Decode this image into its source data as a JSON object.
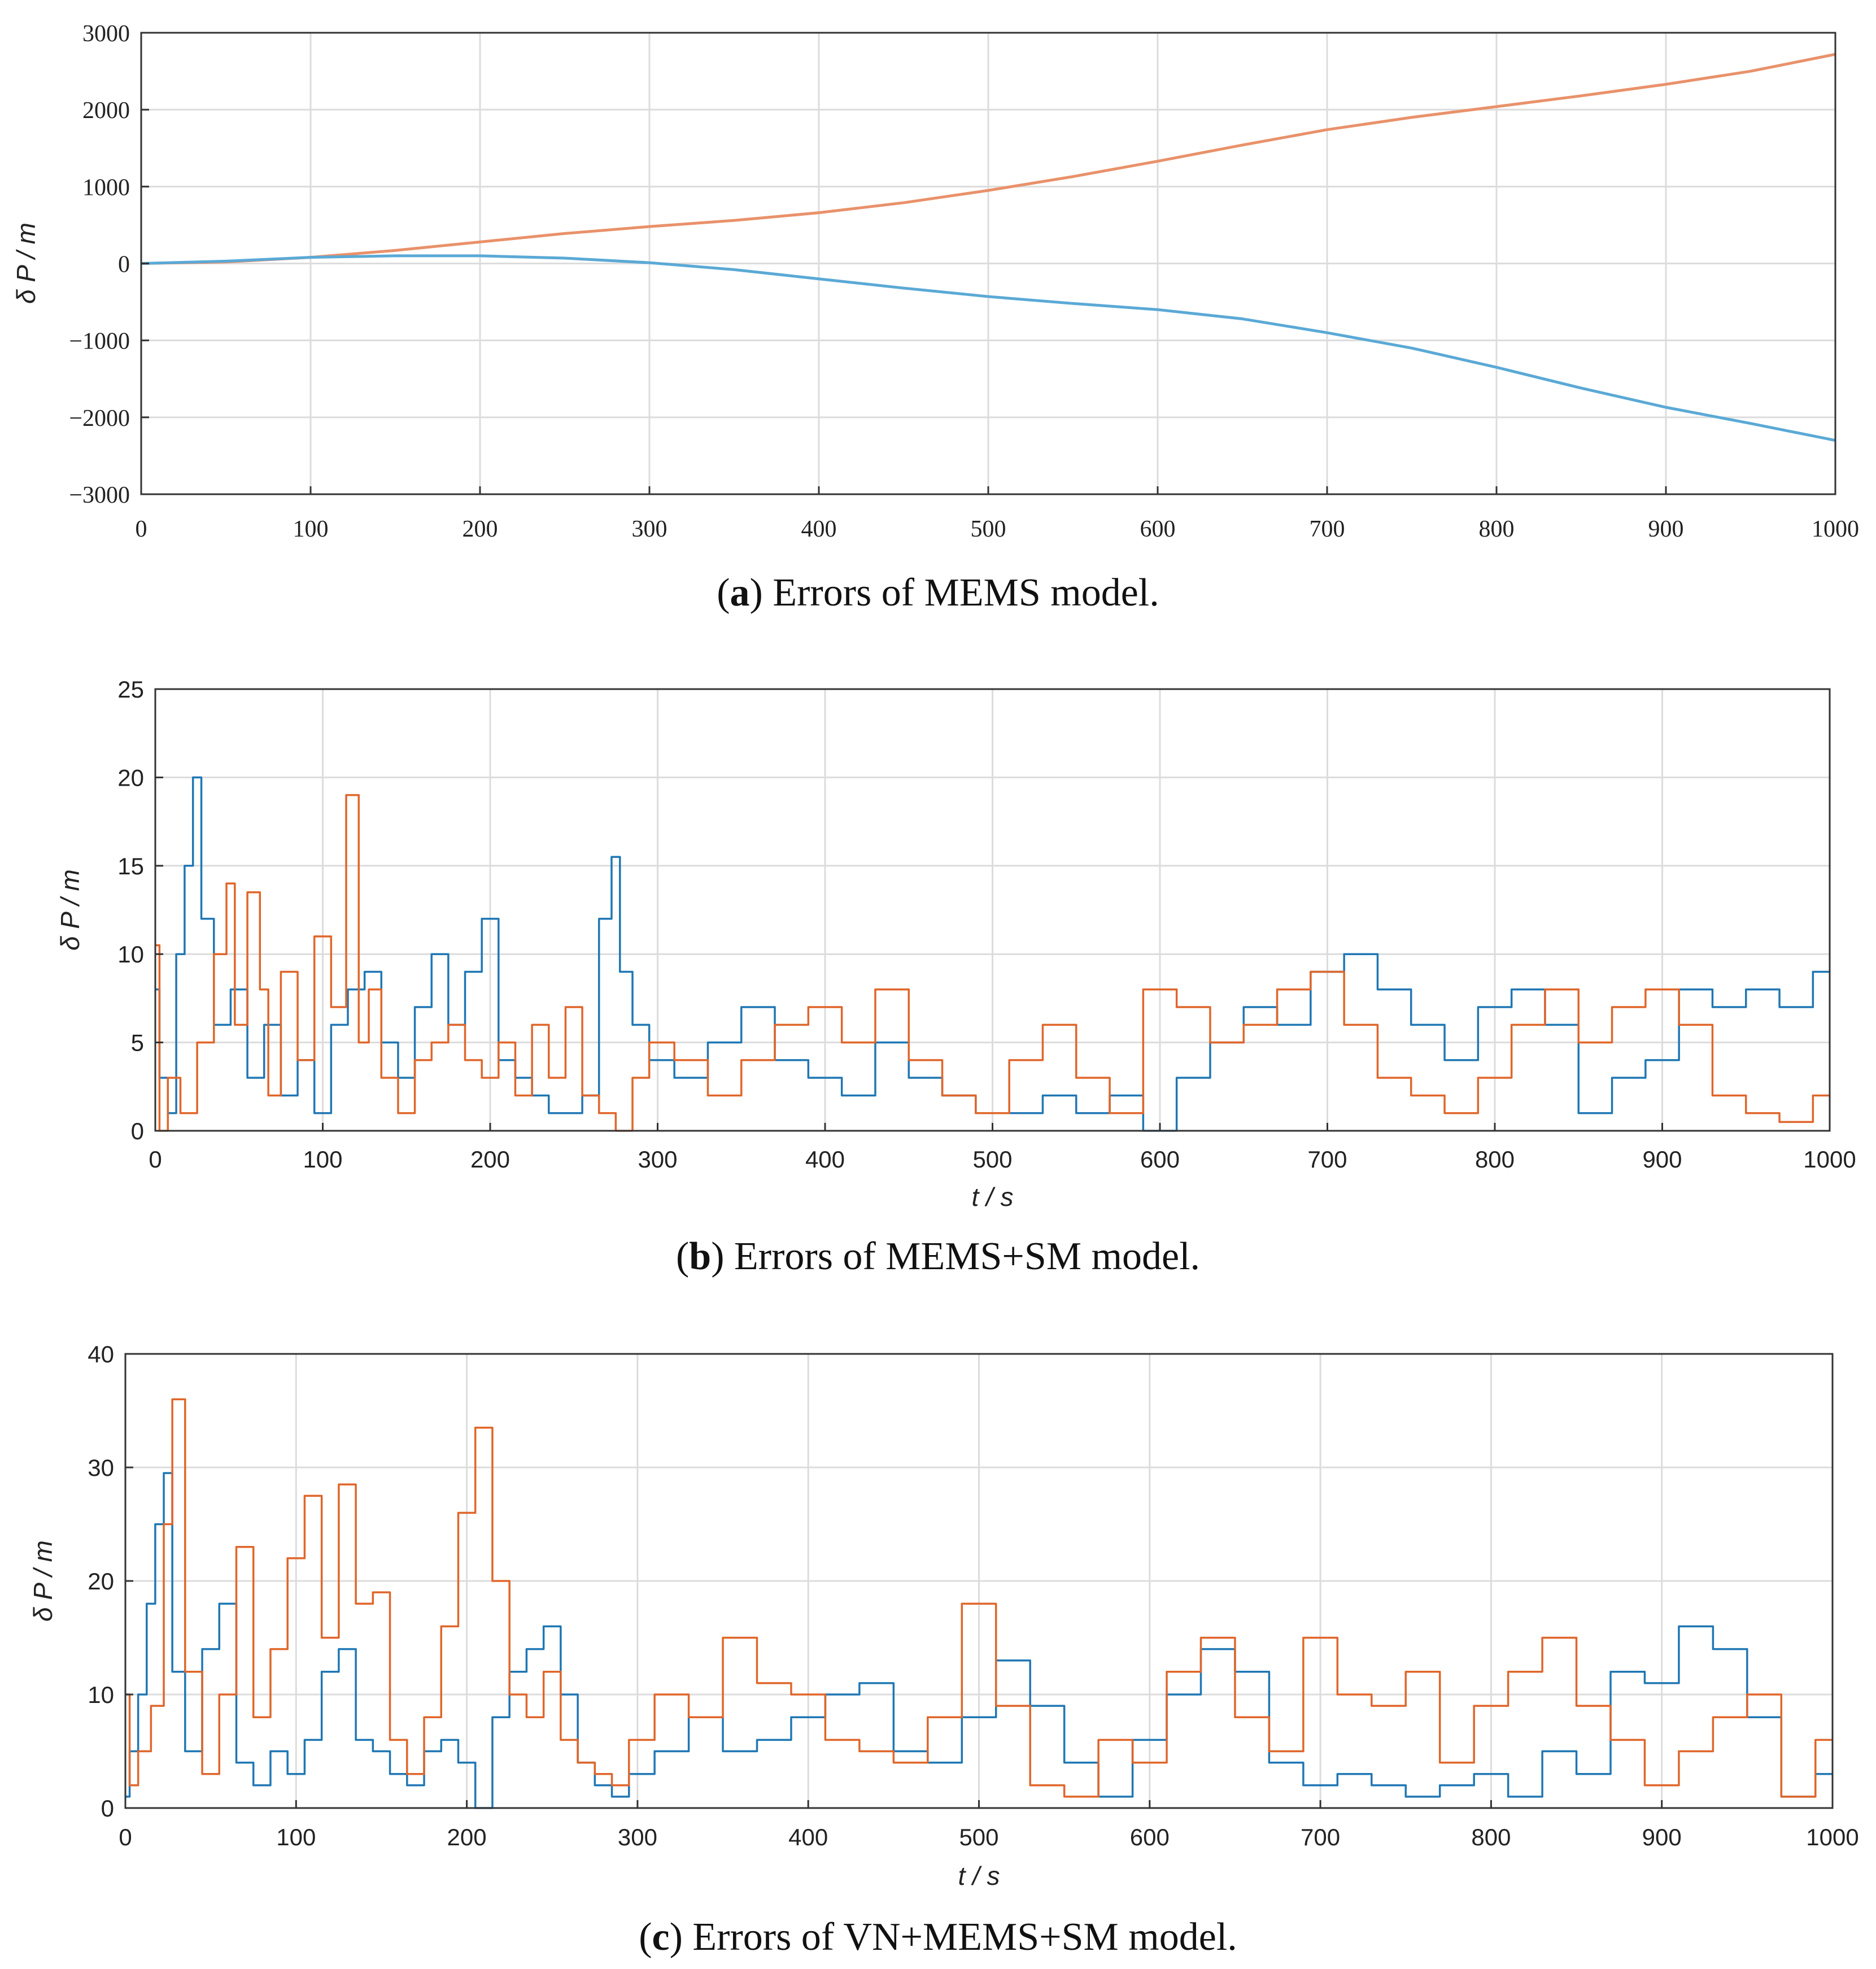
{
  "colors": {
    "blue": "#1f77b4",
    "orange": "#e0662a",
    "orange_a": "#e9916a",
    "blue_a": "#5aa9d6"
  },
  "captions": [
    {
      "letter": "a",
      "text": " Errors of MEMS model."
    },
    {
      "letter": "b",
      "text": " Errors of MEMS+SM model."
    },
    {
      "letter": "c",
      "text": " Errors of VN+MEMS+SM model."
    }
  ],
  "chart_data": [
    {
      "type": "line",
      "title": "(a) Errors of MEMS model.",
      "xlabel": "",
      "ylabel": "δ P / m",
      "xlim": [
        0,
        1000
      ],
      "ylim": [
        -3000,
        3000
      ],
      "xticks": [
        0,
        100,
        200,
        300,
        400,
        500,
        600,
        700,
        800,
        900,
        1000
      ],
      "yticks": [
        -3000,
        -2000,
        -1000,
        0,
        1000,
        2000,
        3000
      ],
      "ytick_labels": [
        "−3000",
        "−2000",
        "−1000",
        "0",
        "1000",
        "2000",
        "3000"
      ],
      "grid": true,
      "series": [
        {
          "name": "orange",
          "x": [
            0,
            50,
            100,
            150,
            200,
            250,
            300,
            350,
            400,
            450,
            500,
            550,
            600,
            650,
            700,
            750,
            800,
            850,
            900,
            950,
            1000
          ],
          "values": [
            0,
            20,
            80,
            170,
            280,
            390,
            480,
            560,
            660,
            790,
            950,
            1130,
            1330,
            1540,
            1740,
            1900,
            2040,
            2180,
            2330,
            2500,
            2720
          ]
        },
        {
          "name": "blue",
          "x": [
            0,
            50,
            100,
            150,
            200,
            250,
            300,
            350,
            400,
            450,
            500,
            550,
            600,
            650,
            700,
            750,
            800,
            850,
            900,
            950,
            1000
          ],
          "values": [
            0,
            30,
            80,
            100,
            100,
            70,
            10,
            -80,
            -200,
            -320,
            -430,
            -520,
            -600,
            -720,
            -900,
            -1100,
            -1350,
            -1620,
            -1870,
            -2080,
            -2300
          ]
        }
      ]
    },
    {
      "type": "line",
      "title": "(b) Errors of MEMS+SM model.",
      "xlabel": "t / s",
      "ylabel": "δ P / m",
      "xlim": [
        0,
        1000
      ],
      "ylim": [
        0,
        25
      ],
      "xticks": [
        0,
        100,
        200,
        300,
        400,
        500,
        600,
        700,
        800,
        900,
        1000
      ],
      "yticks": [
        0,
        5,
        10,
        15,
        20,
        25
      ],
      "grid": true,
      "series": [
        {
          "name": "blue",
          "x": [
            0,
            5,
            10,
            15,
            20,
            25,
            30,
            40,
            50,
            60,
            70,
            80,
            90,
            100,
            110,
            120,
            130,
            140,
            150,
            160,
            170,
            180,
            190,
            200,
            210,
            220,
            230,
            240,
            250,
            260,
            270,
            275,
            280,
            290,
            300,
            320,
            340,
            360,
            380,
            400,
            420,
            440,
            460,
            480,
            500,
            520,
            540,
            560,
            580,
            600,
            620,
            640,
            660,
            680,
            700,
            720,
            740,
            760,
            780,
            800,
            820,
            840,
            860,
            880,
            900,
            920,
            940,
            960,
            980,
            1000
          ],
          "values": [
            8,
            3,
            1,
            10,
            15,
            20,
            12,
            6,
            8,
            3,
            6,
            2,
            4,
            1,
            6,
            8,
            9,
            5,
            3,
            7,
            10,
            6,
            9,
            12,
            4,
            3,
            2,
            1,
            1,
            2,
            12,
            15.5,
            9,
            6,
            4,
            3,
            5,
            7,
            4,
            3,
            2,
            5,
            3,
            2,
            1,
            1,
            2,
            1,
            2,
            0,
            3,
            5,
            7,
            6,
            9,
            10,
            8,
            6,
            4,
            7,
            8,
            6,
            1,
            3,
            4,
            8,
            7,
            8,
            7,
            9
          ]
        },
        {
          "name": "orange",
          "x": [
            0,
            5,
            10,
            20,
            30,
            40,
            45,
            50,
            60,
            65,
            70,
            80,
            90,
            100,
            110,
            118,
            125,
            130,
            140,
            150,
            160,
            170,
            180,
            190,
            200,
            210,
            220,
            230,
            240,
            250,
            260,
            270,
            280,
            290,
            300,
            320,
            340,
            360,
            380,
            400,
            420,
            440,
            460,
            480,
            500,
            520,
            540,
            560,
            580,
            600,
            620,
            640,
            660,
            680,
            700,
            720,
            740,
            760,
            780,
            800,
            820,
            840,
            860,
            880,
            900,
            920,
            940,
            960,
            980,
            1000
          ],
          "values": [
            10.5,
            0,
            3,
            1,
            5,
            10,
            14,
            6,
            13.5,
            8,
            2,
            9,
            4,
            11,
            7,
            19,
            5,
            8,
            3,
            1,
            4,
            5,
            6,
            4,
            3,
            5,
            2,
            6,
            3,
            7,
            2,
            1,
            0,
            3,
            5,
            4,
            2,
            4,
            6,
            7,
            5,
            8,
            4,
            2,
            1,
            4,
            6,
            3,
            1,
            8,
            7,
            5,
            6,
            8,
            9,
            6,
            3,
            2,
            1,
            3,
            6,
            8,
            5,
            7,
            8,
            6,
            2,
            1,
            0.5,
            2
          ]
        }
      ]
    },
    {
      "type": "line",
      "title": "(c) Errors of VN+MEMS+SM model.",
      "xlabel": "t / s",
      "ylabel": "δ P / m",
      "xlim": [
        0,
        1000
      ],
      "ylim": [
        0,
        40
      ],
      "xticks": [
        0,
        100,
        200,
        300,
        400,
        500,
        600,
        700,
        800,
        900,
        1000
      ],
      "yticks": [
        0,
        10,
        20,
        30,
        40
      ],
      "grid": true,
      "series": [
        {
          "name": "blue",
          "x": [
            0,
            5,
            10,
            15,
            20,
            25,
            30,
            40,
            50,
            60,
            70,
            80,
            90,
            100,
            110,
            120,
            130,
            140,
            150,
            160,
            170,
            180,
            190,
            200,
            210,
            220,
            230,
            240,
            250,
            260,
            270,
            280,
            290,
            300,
            320,
            340,
            360,
            380,
            400,
            420,
            440,
            460,
            480,
            500,
            520,
            540,
            560,
            580,
            600,
            620,
            640,
            660,
            680,
            700,
            720,
            740,
            760,
            780,
            800,
            820,
            840,
            860,
            880,
            900,
            920,
            940,
            960,
            980,
            1000
          ],
          "values": [
            1,
            5,
            10,
            18,
            25,
            29.5,
            12,
            5,
            14,
            18,
            4,
            2,
            5,
            3,
            6,
            12,
            14,
            6,
            5,
            3,
            2,
            5,
            6,
            4,
            0,
            8,
            12,
            14,
            16,
            10,
            4,
            2,
            1,
            3,
            5,
            8,
            5,
            6,
            8,
            10,
            11,
            5,
            4,
            8,
            13,
            9,
            4,
            1,
            6,
            10,
            14,
            12,
            4,
            2,
            3,
            2,
            1,
            2,
            3,
            1,
            5,
            3,
            12,
            11,
            16,
            14,
            8,
            1,
            3
          ]
        },
        {
          "name": "orange",
          "x": [
            0,
            5,
            10,
            20,
            25,
            30,
            40,
            50,
            60,
            70,
            80,
            90,
            100,
            110,
            120,
            130,
            140,
            150,
            160,
            170,
            180,
            190,
            200,
            210,
            220,
            230,
            240,
            250,
            260,
            270,
            280,
            290,
            300,
            320,
            340,
            360,
            380,
            400,
            420,
            440,
            460,
            480,
            500,
            520,
            540,
            560,
            580,
            600,
            620,
            640,
            660,
            680,
            700,
            720,
            740,
            760,
            780,
            800,
            820,
            840,
            860,
            880,
            900,
            920,
            940,
            960,
            980,
            1000
          ],
          "values": [
            10,
            2,
            5,
            9,
            25,
            36,
            12,
            3,
            10,
            23,
            8,
            14,
            22,
            27.5,
            15,
            28.5,
            18,
            19,
            6,
            3,
            8,
            16,
            26,
            33.5,
            20,
            10,
            8,
            12,
            6,
            4,
            3,
            2,
            6,
            10,
            8,
            15,
            11,
            10,
            6,
            5,
            4,
            8,
            18,
            9,
            2,
            1,
            6,
            4,
            12,
            15,
            8,
            5,
            15,
            10,
            9,
            12,
            4,
            9,
            12,
            15,
            9,
            6,
            2,
            5,
            8,
            10,
            1,
            6
          ]
        }
      ]
    }
  ]
}
